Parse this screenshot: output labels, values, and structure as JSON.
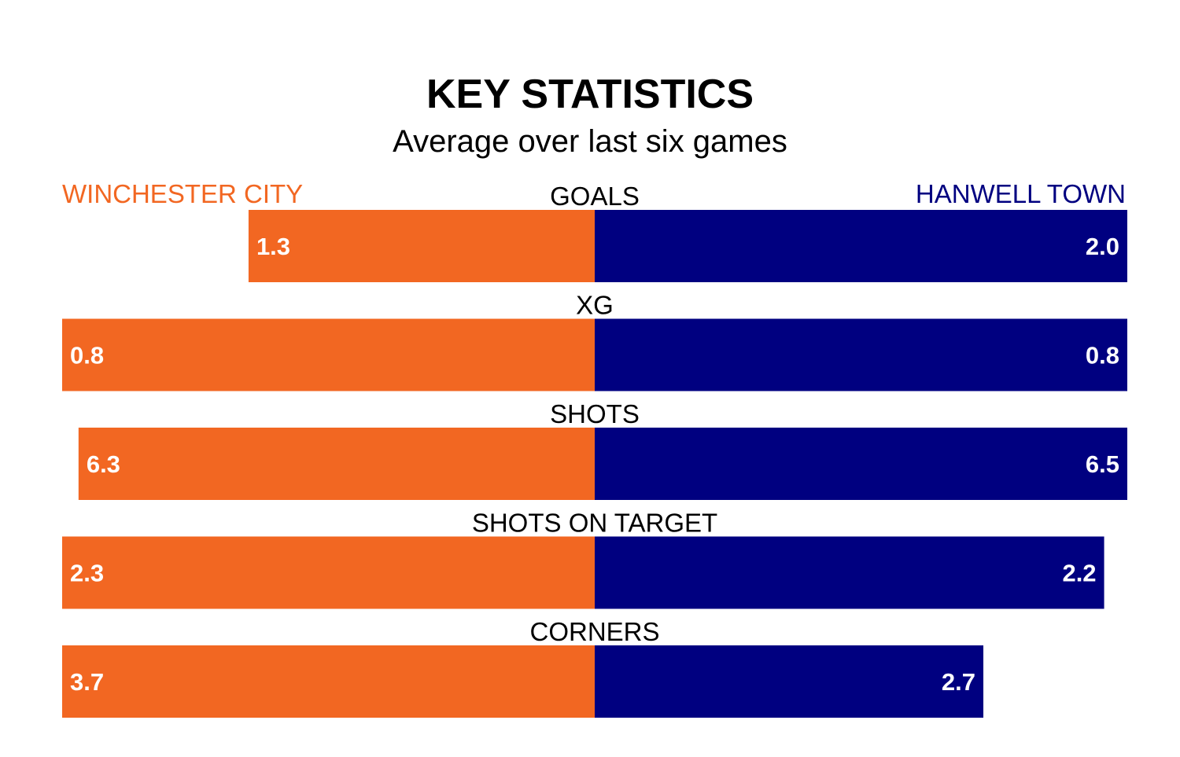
{
  "chart_data": {
    "type": "bar",
    "title": "KEY STATISTICS",
    "subtitle": "Average over last six games",
    "categories": [
      "GOALS",
      "XG",
      "SHOTS",
      "SHOTS ON TARGET",
      "CORNERS"
    ],
    "series": [
      {
        "name": "WINCHESTER CITY",
        "values": [
          1.3,
          0.8,
          6.3,
          2.3,
          3.7
        ],
        "labels": [
          "1.3",
          "0.8",
          "6.3",
          "2.3",
          "3.7"
        ],
        "color": "#f26722"
      },
      {
        "name": "HANWELL TOWN",
        "values": [
          2.0,
          0.8,
          6.5,
          2.2,
          2.7
        ],
        "labels": [
          "2.0",
          "0.8",
          "6.5",
          "2.2",
          "2.7"
        ],
        "color": "#000080"
      }
    ]
  }
}
